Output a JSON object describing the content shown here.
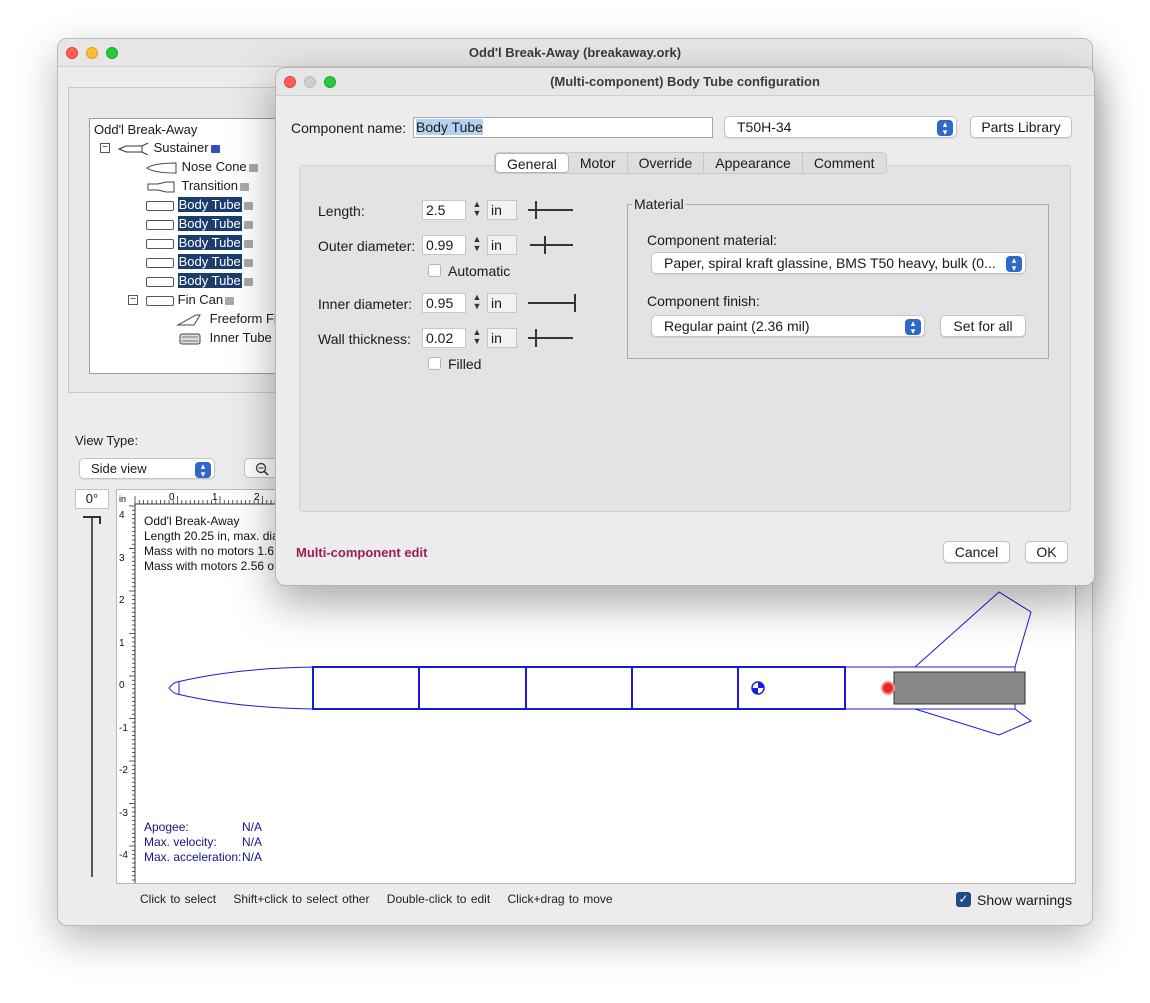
{
  "main_window": {
    "title": "Odd'l Break-Away (breakaway.ork)",
    "tree": {
      "root": "Odd'l Break-Away",
      "items": [
        {
          "label": "Sustainer",
          "selected": false
        },
        {
          "label": "Nose Cone",
          "selected": false
        },
        {
          "label": "Transition",
          "selected": false
        },
        {
          "label": "Body Tube",
          "selected": true
        },
        {
          "label": "Body Tube",
          "selected": true
        },
        {
          "label": "Body Tube",
          "selected": true
        },
        {
          "label": "Body Tube",
          "selected": true
        },
        {
          "label": "Body Tube",
          "selected": true
        },
        {
          "label": "Fin Can",
          "selected": false
        },
        {
          "label": "Freeform Fin",
          "selected": false
        },
        {
          "label": "Inner Tube",
          "selected": false
        }
      ],
      "toggle_collapse": "⊟"
    },
    "view_type": {
      "label": "View Type:",
      "selected": "Side view"
    },
    "angle": "0°",
    "ruler": {
      "unit": "in",
      "x_ticks": [
        "0",
        "1",
        "2"
      ],
      "y_ticks": [
        "4",
        "3",
        "2",
        "1",
        "0",
        "-1",
        "-2",
        "-3",
        "-4"
      ]
    },
    "info": {
      "name": "Odd'l Break-Away",
      "length": "Length 20.25 in, max. dia",
      "mass_no_motors": "Mass with no motors 1.6",
      "mass_motors": "Mass with motors 2.56 o"
    },
    "stats": {
      "apogee_label": "Apogee:",
      "apogee_value": "N/A",
      "velocity_label": "Max. velocity:",
      "velocity_value": "N/A",
      "accel_label": "Max. acceleration:",
      "accel_value": "N/A"
    },
    "status_bar": {
      "click": "Click to select",
      "shift_click": "Shift+click to select other",
      "double_click": "Double-click to edit",
      "drag": "Click+drag to move"
    },
    "show_warnings": {
      "label": "Show warnings",
      "checked": true
    }
  },
  "dialog": {
    "title": "(Multi-component) Body Tube configuration",
    "component_name_label": "Component name:",
    "component_name_value": "Body Tube",
    "preset": "T50H-34",
    "parts_library": "Parts Library",
    "tabs": [
      "General",
      "Motor",
      "Override",
      "Appearance",
      "Comment"
    ],
    "active_tab": "General",
    "fields": {
      "length": {
        "label": "Length:",
        "value": "2.5",
        "unit": "in"
      },
      "outer_diameter": {
        "label": "Outer diameter:",
        "value": "0.99",
        "unit": "in"
      },
      "automatic": {
        "label": "Automatic",
        "checked": false
      },
      "inner_diameter": {
        "label": "Inner diameter:",
        "value": "0.95",
        "unit": "in"
      },
      "wall_thickness": {
        "label": "Wall thickness:",
        "value": "0.02",
        "unit": "in"
      },
      "filled": {
        "label": "Filled",
        "checked": false
      }
    },
    "material": {
      "group_title": "Material",
      "component_material_label": "Component material:",
      "component_material_value": "Paper, spiral kraft glassine, BMS T50 heavy, bulk (0...",
      "component_finish_label": "Component finish:",
      "component_finish_value": "Regular paint (2.36 mil)",
      "set_for_all": "Set for all"
    },
    "multi_component_label": "Multi-component edit",
    "cancel": "Cancel",
    "ok": "OK"
  },
  "colors": {
    "selection": "#1b3d6e",
    "rocket_outline": "#1a1adb",
    "stats_text": "#14148f",
    "multi_label": "#9b1e57",
    "accent": "#2e68c9"
  }
}
